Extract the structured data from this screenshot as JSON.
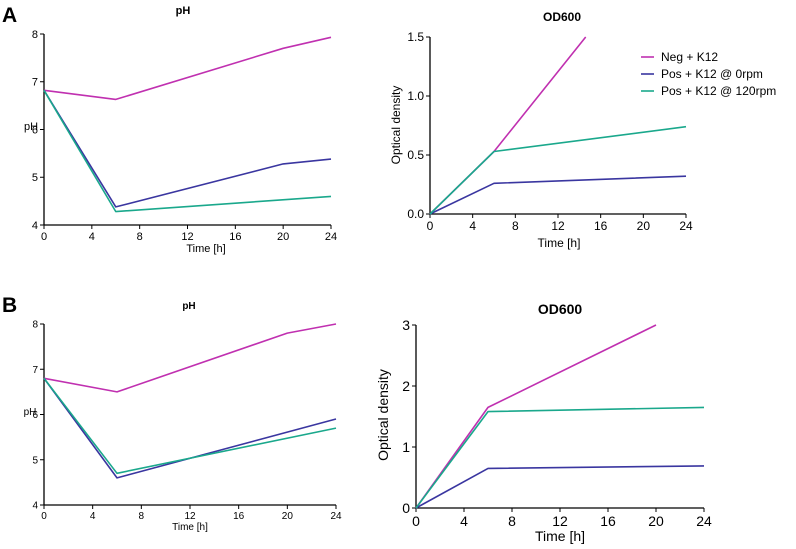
{
  "figure": {
    "panels": [
      {
        "label": "A"
      },
      {
        "label": "B"
      }
    ],
    "legend": {
      "entries": [
        {
          "name": "Neg + K12",
          "color": "#c030b0"
        },
        {
          "name": "Pos + K12 @ 0rpm",
          "color": "#3a36a0"
        },
        {
          "name": "Pos + K12 @ 120rpm",
          "color": "#1aa88c"
        }
      ]
    }
  },
  "chart_data": [
    {
      "id": "A-pH",
      "type": "line",
      "title": "pH",
      "xlabel": "Time [h]",
      "ylabel": "pH",
      "xlim": [
        0,
        24
      ],
      "ylim": [
        4,
        8
      ],
      "xticks": [
        0,
        4,
        8,
        12,
        16,
        20,
        24
      ],
      "yticks": [
        4,
        5,
        6,
        7,
        8
      ],
      "series": [
        {
          "name": "Neg + K12",
          "color": "#c030b0",
          "x": [
            0,
            6,
            20,
            24
          ],
          "y": [
            6.82,
            6.63,
            7.7,
            7.93
          ]
        },
        {
          "name": "Pos + K12 @ 0rpm",
          "color": "#3a36a0",
          "x": [
            0,
            6,
            20,
            24
          ],
          "y": [
            6.82,
            4.38,
            5.28,
            5.38
          ]
        },
        {
          "name": "Pos + K12 @ 120rpm",
          "color": "#1aa88c",
          "x": [
            0,
            6,
            24
          ],
          "y": [
            6.82,
            4.28,
            4.6
          ]
        }
      ]
    },
    {
      "id": "A-OD600",
      "type": "line",
      "title": "OD600",
      "xlabel": "Time [h]",
      "ylabel": "Optical density",
      "xlim": [
        0,
        24
      ],
      "ylim": [
        0,
        1.5
      ],
      "xticks": [
        0,
        4,
        8,
        12,
        16,
        20,
        24
      ],
      "yticks": [
        0.0,
        0.5,
        1.0,
        1.5
      ],
      "ytick_labels": [
        "0.0",
        "0.5",
        "1.0",
        "1.5"
      ],
      "series": [
        {
          "name": "Neg + K12",
          "color": "#c030b0",
          "x": [
            0,
            6,
            14.6
          ],
          "y": [
            0.0,
            0.53,
            1.5
          ]
        },
        {
          "name": "Pos + K12 @ 0rpm",
          "color": "#3a36a0",
          "x": [
            0,
            6,
            24
          ],
          "y": [
            0.0,
            0.26,
            0.32
          ]
        },
        {
          "name": "Pos + K12 @ 120rpm",
          "color": "#1aa88c",
          "x": [
            0,
            6,
            24
          ],
          "y": [
            0.0,
            0.53,
            0.74
          ]
        }
      ]
    },
    {
      "id": "B-pH",
      "type": "line",
      "title": "pH",
      "xlabel": "Time [h]",
      "ylabel": "pH",
      "xlim": [
        0,
        24
      ],
      "ylim": [
        4,
        8
      ],
      "xticks": [
        0,
        4,
        8,
        12,
        16,
        20,
        24
      ],
      "yticks": [
        4,
        5,
        6,
        7,
        8
      ],
      "series": [
        {
          "name": "Neg + K12",
          "color": "#c030b0",
          "x": [
            0,
            6,
            20,
            24
          ],
          "y": [
            6.8,
            6.5,
            7.8,
            8.0
          ]
        },
        {
          "name": "Pos + K12 @ 0rpm",
          "color": "#3a36a0",
          "x": [
            0,
            6,
            24
          ],
          "y": [
            6.8,
            4.6,
            5.9
          ]
        },
        {
          "name": "Pos + K12 @ 120rpm",
          "color": "#1aa88c",
          "x": [
            0,
            6,
            24
          ],
          "y": [
            6.8,
            4.7,
            5.7
          ]
        }
      ]
    },
    {
      "id": "B-OD600",
      "type": "line",
      "title": "OD600",
      "xlabel": "Time [h]",
      "ylabel": "Optical density",
      "xlim": [
        0,
        24
      ],
      "ylim": [
        0,
        3
      ],
      "xticks": [
        0,
        4,
        8,
        12,
        16,
        20,
        24
      ],
      "yticks": [
        0,
        1,
        2,
        3
      ],
      "series": [
        {
          "name": "Neg + K12",
          "color": "#c030b0",
          "x": [
            0,
            6,
            20
          ],
          "y": [
            0.0,
            1.65,
            3.0
          ]
        },
        {
          "name": "Pos + K12 @ 0rpm",
          "color": "#3a36a0",
          "x": [
            0,
            6,
            24
          ],
          "y": [
            0.0,
            0.65,
            0.69
          ]
        },
        {
          "name": "Pos + K12 @ 120rpm",
          "color": "#1aa88c",
          "x": [
            0,
            6,
            24
          ],
          "y": [
            0.0,
            1.58,
            1.65
          ]
        }
      ]
    }
  ]
}
